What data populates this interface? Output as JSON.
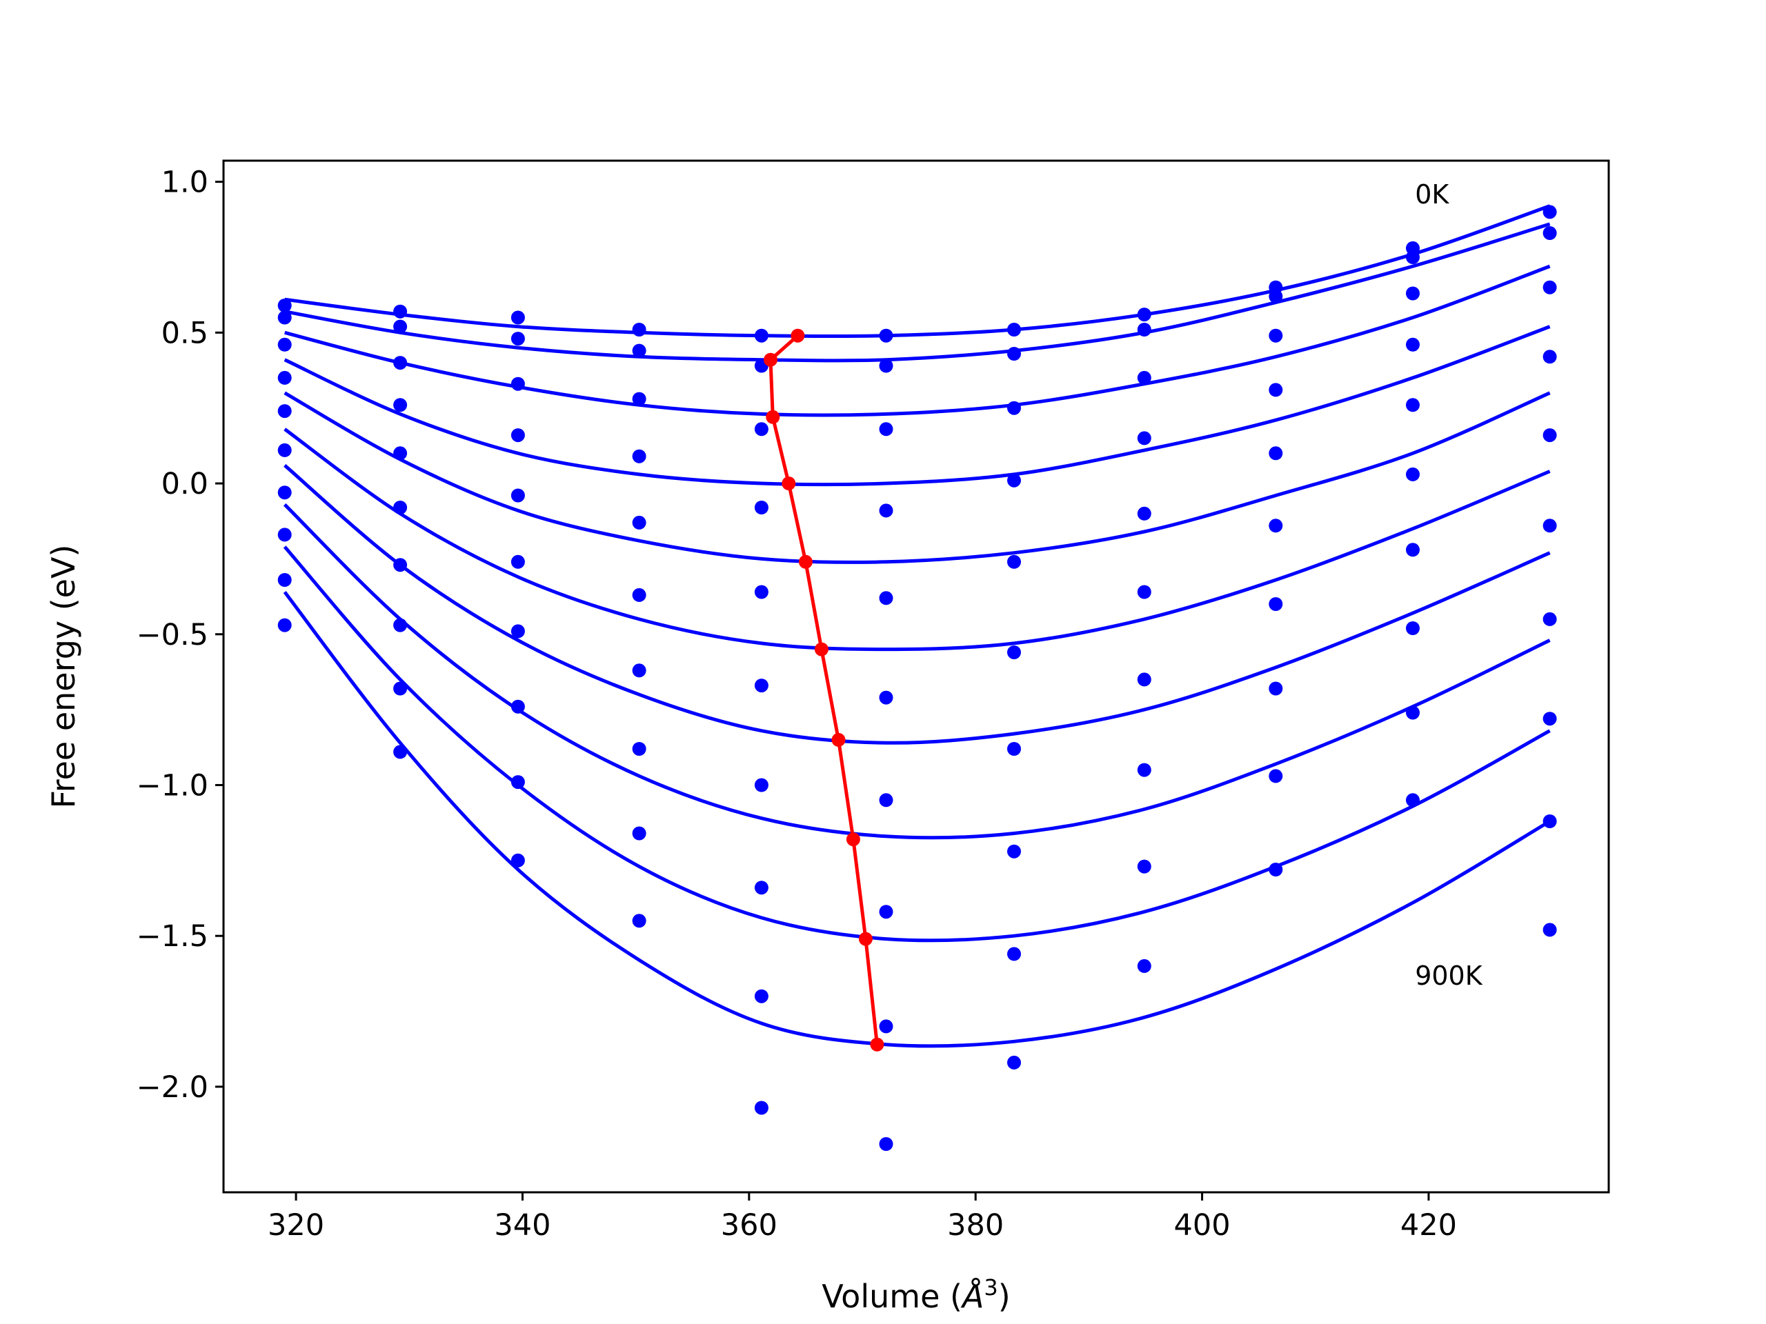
{
  "chart_data": {
    "type": "scatter",
    "xlabel_prefix": "Volume (",
    "xlabel_unit": "Å",
    "xlabel_exp": "3",
    "xlabel_suffix": ")",
    "ylabel": "Free energy (eV)",
    "xlim": [
      313.6,
      435.9
    ],
    "ylim": [
      -2.35,
      1.07
    ],
    "x_ticks": [
      320,
      340,
      360,
      380,
      400,
      420
    ],
    "x_tick_labels": [
      "320",
      "340",
      "360",
      "380",
      "400",
      "420"
    ],
    "y_ticks": [
      1.0,
      0.5,
      0.0,
      -0.5,
      -1.0,
      -1.5,
      -2.0
    ],
    "y_tick_labels": [
      "1.0",
      "0.5",
      "0.0",
      "−0.5",
      "−1.0",
      "−1.5",
      "−2.0"
    ],
    "annotations": [
      {
        "text": "0K",
        "x": 418.8,
        "y": 0.96
      },
      {
        "text": "900K",
        "x": 418.8,
        "y": -1.63
      }
    ],
    "grid": false,
    "colors": {
      "data": "#0000ff",
      "fit": "#0000ff",
      "minimum": "#ff0000",
      "frame": "#000000"
    },
    "volumes": [
      319.0,
      329.2,
      339.6,
      350.3,
      361.1,
      372.1,
      383.4,
      394.9,
      406.5,
      418.6,
      430.7
    ],
    "series": [
      {
        "values": [
          0.59,
          0.57,
          0.55,
          0.51,
          0.49,
          0.49,
          0.51,
          0.56,
          0.65,
          0.78,
          0.9
        ],
        "fit": [
          0.61,
          0.56,
          0.52,
          0.5,
          0.49,
          0.49,
          0.51,
          0.56,
          0.64,
          0.76,
          0.92
        ]
      },
      {
        "values": [
          0.55,
          0.52,
          0.48,
          0.44,
          0.39,
          0.39,
          0.43,
          0.51,
          0.62,
          0.75,
          0.83
        ],
        "fit": [
          0.57,
          0.5,
          0.45,
          0.42,
          0.41,
          0.41,
          0.44,
          0.5,
          0.6,
          0.72,
          0.86
        ]
      },
      {
        "values": [
          0.46,
          0.4,
          0.33,
          0.28,
          0.18,
          0.18,
          0.25,
          0.35,
          0.49,
          0.63,
          0.65
        ],
        "fit": [
          0.5,
          0.4,
          0.32,
          0.26,
          0.23,
          0.23,
          0.26,
          0.33,
          0.42,
          0.55,
          0.72
        ]
      },
      {
        "values": [
          0.35,
          0.26,
          0.16,
          0.09,
          -0.08,
          -0.09,
          0.01,
          0.15,
          0.31,
          0.46,
          0.42
        ],
        "fit": [
          0.41,
          0.23,
          0.1,
          0.03,
          0.0,
          0.0,
          0.03,
          0.11,
          0.21,
          0.35,
          0.52
        ]
      },
      {
        "values": [
          0.24,
          0.1,
          -0.04,
          -0.13,
          -0.36,
          -0.38,
          -0.26,
          -0.1,
          0.1,
          0.26,
          0.16
        ],
        "fit": [
          0.3,
          0.08,
          -0.09,
          -0.19,
          -0.25,
          -0.26,
          -0.23,
          -0.16,
          -0.04,
          0.1,
          0.3
        ]
      },
      {
        "values": [
          0.11,
          -0.08,
          -0.26,
          -0.37,
          -0.67,
          -0.71,
          -0.56,
          -0.36,
          -0.14,
          0.03,
          -0.14
        ],
        "fit": [
          0.18,
          -0.1,
          -0.31,
          -0.45,
          -0.53,
          -0.55,
          -0.53,
          -0.45,
          -0.32,
          -0.15,
          0.04
        ]
      },
      {
        "values": [
          -0.03,
          -0.27,
          -0.49,
          -0.62,
          -1.0,
          -1.05,
          -0.88,
          -0.65,
          -0.4,
          -0.22,
          -0.45
        ],
        "fit": [
          0.06,
          -0.27,
          -0.52,
          -0.7,
          -0.82,
          -0.86,
          -0.83,
          -0.75,
          -0.61,
          -0.43,
          -0.23
        ]
      },
      {
        "values": [
          -0.17,
          -0.47,
          -0.74,
          -0.88,
          -1.34,
          -1.42,
          -1.22,
          -0.95,
          -0.68,
          -0.48,
          -0.78
        ],
        "fit": [
          -0.07,
          -0.45,
          -0.75,
          -0.97,
          -1.11,
          -1.17,
          -1.16,
          -1.08,
          -0.93,
          -0.74,
          -0.52
        ]
      },
      {
        "values": [
          -0.32,
          -0.68,
          -0.99,
          -1.16,
          -1.7,
          -1.8,
          -1.56,
          -1.27,
          -0.97,
          -0.76,
          -1.12
        ],
        "fit": [
          -0.21,
          -0.65,
          -1.0,
          -1.27,
          -1.44,
          -1.51,
          -1.5,
          -1.42,
          -1.27,
          -1.07,
          -0.82
        ]
      },
      {
        "values": [
          -0.47,
          -0.89,
          -1.25,
          -1.45,
          -2.07,
          -2.19,
          -1.92,
          -1.6,
          -1.28,
          -1.05,
          -1.48
        ],
        "fit": [
          -0.36,
          -0.86,
          -1.28,
          -1.58,
          -1.79,
          -1.86,
          -1.85,
          -1.77,
          -1.61,
          -1.39,
          -1.12
        ]
      }
    ],
    "minimum_line": {
      "x": [
        364.3,
        361.9,
        362.1,
        363.5,
        365.0,
        366.4,
        367.9,
        369.2,
        370.3,
        371.3
      ],
      "y": [
        0.49,
        0.41,
        0.22,
        0.0,
        -0.26,
        -0.55,
        -0.85,
        -1.18,
        -1.51,
        -1.86
      ]
    }
  }
}
